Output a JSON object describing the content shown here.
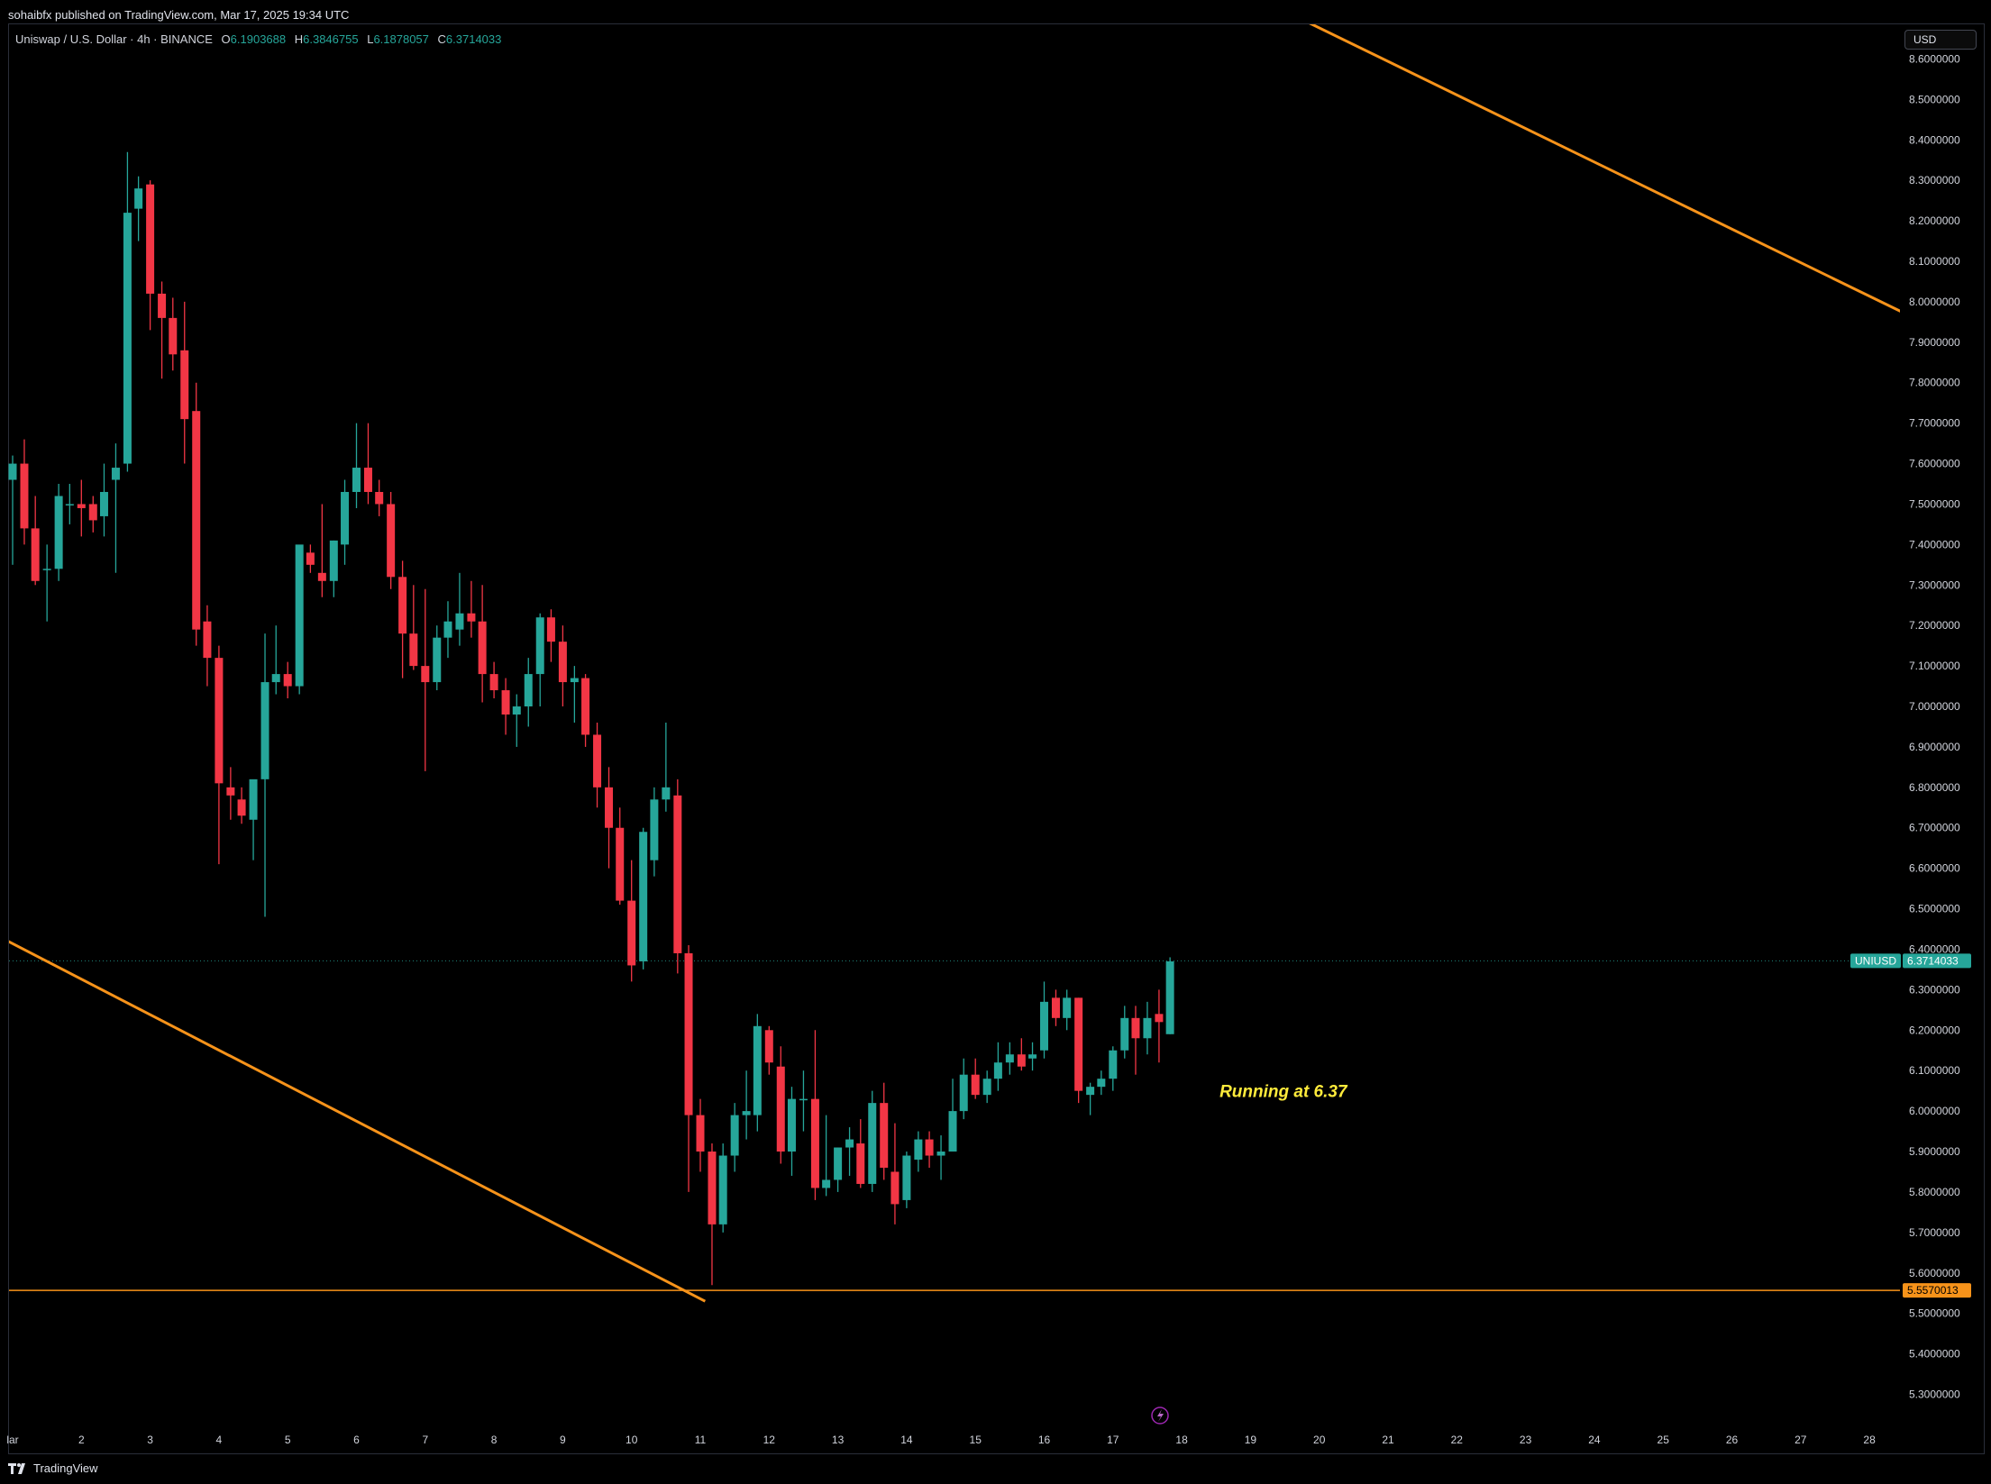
{
  "header": {
    "published_by": "sohaibfx published on TradingView.com, Mar 17, 2025 19:34 UTC"
  },
  "legend": {
    "title": "Uniswap / U.S. Dollar · 4h · BINANCE",
    "open_label": "O",
    "open": "6.1903688",
    "high_label": "H",
    "high": "6.3846755",
    "low_label": "L",
    "low": "6.1878057",
    "close_label": "C",
    "close": "6.3714033"
  },
  "currency_button": "USD",
  "footer": {
    "brand": "TradingView"
  },
  "colors": {
    "up": "#26a69a",
    "down": "#f23645",
    "trendline": "#f7931a",
    "annotation": "#ffeb3b",
    "background": "#000000"
  },
  "chart_data": {
    "type": "candlestick",
    "symbol": "UNIUSD",
    "interval": "4h",
    "ylim": [
      5.24,
      8.68
    ],
    "y_ticks": [
      "5.3000000",
      "5.4000000",
      "5.5000000",
      "5.6000000",
      "5.7000000",
      "5.8000000",
      "5.9000000",
      "6.0000000",
      "6.1000000",
      "6.2000000",
      "6.3000000",
      "6.4000000",
      "6.5000000",
      "6.6000000",
      "6.7000000",
      "6.8000000",
      "6.9000000",
      "7.0000000",
      "7.1000000",
      "7.2000000",
      "7.3000000",
      "7.4000000",
      "7.5000000",
      "7.6000000",
      "7.7000000",
      "7.8000000",
      "7.9000000",
      "8.0000000",
      "8.1000000",
      "8.2000000",
      "8.3000000",
      "8.4000000",
      "8.5000000",
      "8.6000000"
    ],
    "x_ticks": [
      "lar",
      "2",
      "3",
      "4",
      "5",
      "6",
      "7",
      "8",
      "9",
      "10",
      "11",
      "12",
      "13",
      "14",
      "15",
      "16",
      "17",
      "18",
      "19",
      "20",
      "21",
      "22",
      "23",
      "24",
      "25",
      "26",
      "27",
      "28"
    ],
    "x_tick_days": [
      1,
      2,
      3,
      4,
      5,
      6,
      7,
      8,
      9,
      10,
      11,
      12,
      13,
      14,
      15,
      16,
      17,
      18,
      19,
      20,
      21,
      22,
      23,
      24,
      25,
      26,
      27,
      28
    ],
    "candles": [
      [
        1.0,
        7.56,
        7.62,
        7.35,
        7.6
      ],
      [
        1.17,
        7.6,
        7.66,
        7.4,
        7.44
      ],
      [
        1.33,
        7.44,
        7.52,
        7.3,
        7.31
      ],
      [
        1.5,
        7.34,
        7.4,
        7.21,
        7.34
      ],
      [
        1.67,
        7.34,
        7.55,
        7.31,
        7.52
      ],
      [
        1.83,
        7.5,
        7.55,
        7.45,
        7.5
      ],
      [
        2.0,
        7.5,
        7.56,
        7.42,
        7.49
      ],
      [
        2.17,
        7.5,
        7.52,
        7.43,
        7.46
      ],
      [
        2.33,
        7.47,
        7.6,
        7.42,
        7.53
      ],
      [
        2.5,
        7.56,
        7.65,
        7.33,
        7.59
      ],
      [
        2.67,
        7.6,
        8.37,
        7.58,
        8.22
      ],
      [
        2.83,
        8.23,
        8.31,
        8.15,
        8.28
      ],
      [
        3.0,
        8.29,
        8.3,
        7.93,
        8.02
      ],
      [
        3.17,
        8.02,
        8.05,
        7.81,
        7.96
      ],
      [
        3.33,
        7.96,
        8.01,
        7.83,
        7.87
      ],
      [
        3.5,
        7.88,
        8.0,
        7.6,
        7.71
      ],
      [
        3.67,
        7.73,
        7.8,
        7.15,
        7.19
      ],
      [
        3.83,
        7.21,
        7.25,
        7.05,
        7.12
      ],
      [
        4.0,
        7.12,
        7.15,
        6.61,
        6.81
      ],
      [
        4.17,
        6.8,
        6.85,
        6.72,
        6.78
      ],
      [
        4.33,
        6.77,
        6.8,
        6.71,
        6.73
      ],
      [
        4.5,
        6.72,
        6.81,
        6.62,
        6.82
      ],
      [
        4.67,
        6.82,
        7.18,
        6.48,
        7.06
      ],
      [
        4.83,
        7.06,
        7.2,
        7.03,
        7.08
      ],
      [
        5.0,
        7.08,
        7.11,
        7.02,
        7.05
      ],
      [
        5.17,
        7.05,
        7.38,
        7.03,
        7.4
      ],
      [
        5.33,
        7.38,
        7.4,
        7.33,
        7.35
      ],
      [
        5.5,
        7.33,
        7.5,
        7.27,
        7.31
      ],
      [
        5.67,
        7.31,
        7.41,
        7.27,
        7.41
      ],
      [
        5.83,
        7.4,
        7.56,
        7.35,
        7.53
      ],
      [
        6.0,
        7.53,
        7.7,
        7.49,
        7.59
      ],
      [
        6.17,
        7.59,
        7.7,
        7.5,
        7.53
      ],
      [
        6.33,
        7.53,
        7.56,
        7.47,
        7.5
      ],
      [
        6.5,
        7.5,
        7.53,
        7.29,
        7.32
      ],
      [
        6.67,
        7.32,
        7.36,
        7.07,
        7.18
      ],
      [
        6.83,
        7.18,
        7.3,
        7.09,
        7.1
      ],
      [
        7.0,
        7.1,
        7.29,
        6.84,
        7.06
      ],
      [
        7.17,
        7.06,
        7.2,
        7.04,
        7.17
      ],
      [
        7.33,
        7.17,
        7.26,
        7.12,
        7.21
      ],
      [
        7.5,
        7.19,
        7.33,
        7.15,
        7.23
      ],
      [
        7.67,
        7.23,
        7.31,
        7.17,
        7.21
      ],
      [
        7.83,
        7.21,
        7.3,
        7.01,
        7.08
      ],
      [
        8.0,
        7.08,
        7.11,
        7.02,
        7.04
      ],
      [
        8.17,
        7.04,
        7.07,
        6.93,
        6.98
      ],
      [
        8.33,
        6.98,
        7.03,
        6.9,
        7.0
      ],
      [
        8.5,
        7.0,
        7.12,
        6.95,
        7.08
      ],
      [
        8.67,
        7.08,
        7.23,
        7.0,
        7.22
      ],
      [
        8.83,
        7.22,
        7.24,
        7.11,
        7.16
      ],
      [
        9.0,
        7.16,
        7.2,
        7.0,
        7.06
      ],
      [
        9.17,
        7.06,
        7.1,
        6.96,
        7.07
      ],
      [
        9.33,
        7.07,
        7.08,
        6.9,
        6.93
      ],
      [
        9.5,
        6.93,
        6.96,
        6.75,
        6.8
      ],
      [
        9.67,
        6.8,
        6.85,
        6.6,
        6.7
      ],
      [
        9.83,
        6.7,
        6.75,
        6.51,
        6.52
      ],
      [
        10.0,
        6.52,
        6.62,
        6.32,
        6.36
      ],
      [
        10.17,
        6.37,
        6.7,
        6.35,
        6.69
      ],
      [
        10.33,
        6.62,
        6.8,
        6.58,
        6.77
      ],
      [
        10.5,
        6.77,
        6.96,
        6.74,
        6.8
      ],
      [
        10.67,
        6.78,
        6.82,
        6.34,
        6.39
      ],
      [
        10.83,
        6.39,
        6.41,
        5.8,
        5.99
      ],
      [
        11.0,
        5.99,
        6.03,
        5.85,
        5.9
      ],
      [
        11.17,
        5.9,
        5.92,
        5.57,
        5.72
      ],
      [
        11.33,
        5.72,
        5.92,
        5.7,
        5.89
      ],
      [
        11.5,
        5.89,
        6.02,
        5.85,
        5.99
      ],
      [
        11.67,
        5.99,
        6.1,
        5.93,
        6.0
      ],
      [
        11.83,
        5.99,
        6.24,
        5.95,
        6.21
      ],
      [
        12.0,
        6.2,
        6.21,
        6.09,
        6.12
      ],
      [
        12.17,
        6.11,
        6.16,
        5.87,
        5.9
      ],
      [
        12.33,
        5.9,
        6.06,
        5.84,
        6.03
      ],
      [
        12.5,
        6.03,
        6.1,
        5.95,
        6.03
      ],
      [
        12.67,
        6.03,
        6.2,
        5.78,
        5.81
      ],
      [
        12.83,
        5.81,
        5.99,
        5.79,
        5.83
      ],
      [
        13.0,
        5.83,
        5.91,
        5.8,
        5.91
      ],
      [
        13.17,
        5.91,
        5.96,
        5.84,
        5.93
      ],
      [
        13.33,
        5.92,
        5.98,
        5.81,
        5.82
      ],
      [
        13.5,
        5.82,
        6.05,
        5.8,
        6.02
      ],
      [
        13.67,
        6.02,
        6.07,
        5.83,
        5.86
      ],
      [
        13.83,
        5.85,
        5.97,
        5.72,
        5.77
      ],
      [
        14.0,
        5.78,
        5.9,
        5.76,
        5.89
      ],
      [
        14.17,
        5.88,
        5.95,
        5.85,
        5.93
      ],
      [
        14.33,
        5.93,
        5.95,
        5.86,
        5.89
      ],
      [
        14.5,
        5.89,
        5.94,
        5.83,
        5.9
      ],
      [
        14.67,
        5.9,
        6.08,
        5.9,
        6.0
      ],
      [
        14.83,
        6.0,
        6.13,
        5.98,
        6.09
      ],
      [
        15.0,
        6.09,
        6.13,
        6.03,
        6.04
      ],
      [
        15.17,
        6.04,
        6.1,
        6.02,
        6.08
      ],
      [
        15.33,
        6.08,
        6.17,
        6.05,
        6.12
      ],
      [
        15.5,
        6.12,
        6.17,
        6.09,
        6.14
      ],
      [
        15.67,
        6.14,
        6.18,
        6.1,
        6.11
      ],
      [
        15.83,
        6.13,
        6.17,
        6.1,
        6.14
      ],
      [
        16.0,
        6.15,
        6.32,
        6.13,
        6.27
      ],
      [
        16.17,
        6.28,
        6.3,
        6.21,
        6.23
      ],
      [
        16.33,
        6.23,
        6.3,
        6.2,
        6.28
      ],
      [
        16.5,
        6.28,
        6.28,
        6.02,
        6.05
      ],
      [
        16.67,
        6.04,
        6.07,
        5.99,
        6.06
      ],
      [
        16.83,
        6.06,
        6.1,
        6.04,
        6.08
      ],
      [
        17.0,
        6.08,
        6.16,
        6.05,
        6.15
      ],
      [
        17.17,
        6.15,
        6.26,
        6.13,
        6.23
      ],
      [
        17.33,
        6.23,
        6.26,
        6.09,
        6.18
      ],
      [
        17.5,
        6.18,
        6.27,
        6.14,
        6.23
      ],
      [
        17.67,
        6.24,
        6.3,
        6.12,
        6.22
      ],
      [
        17.83,
        6.19,
        6.38,
        6.19,
        6.37
      ]
    ],
    "trendlines": [
      {
        "name": "lower-trendline",
        "from": [
          0.93,
          6.42
        ],
        "to": [
          11.07,
          5.53
        ]
      },
      {
        "name": "upper-trendline",
        "from": [
          19.6,
          8.71
        ],
        "to": [
          28.65,
          7.96
        ]
      }
    ],
    "horizontal_levels": [
      {
        "name": "support-level",
        "price": 5.557,
        "label": "5.5570013",
        "color": "#f7931a"
      }
    ],
    "last_price": {
      "symbol_label": "UNIUSD",
      "price": 6.3714033,
      "label": "6.3714033"
    },
    "annotation": {
      "text": "Running at 6.37",
      "day": 18.55,
      "price": 6.035
    }
  }
}
